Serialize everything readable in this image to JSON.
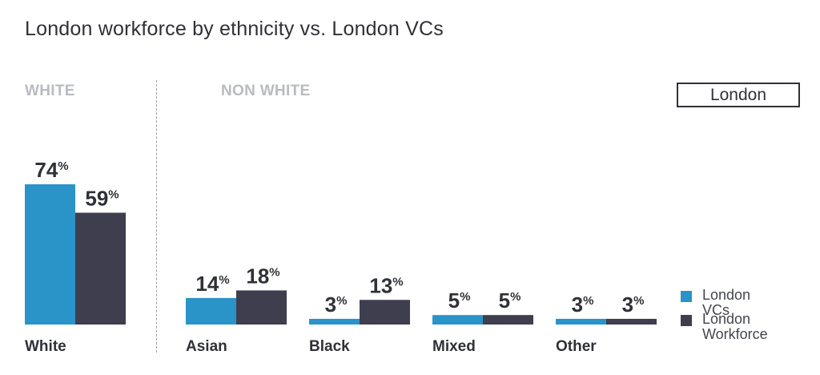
{
  "title": "London workforce by ethnicity vs. London VCs",
  "groups": {
    "white": "WHITE",
    "non_white": "NON WHITE"
  },
  "region_button": "London",
  "colors": {
    "london_vcs": "#2a93c8",
    "london_workforce": "#3f3e4e"
  },
  "chart_data": {
    "type": "bar",
    "categories": [
      "White",
      "Asian",
      "Black",
      "Mixed",
      "Other"
    ],
    "series": [
      {
        "name": "London VCs",
        "values": [
          74,
          14,
          3,
          5,
          3
        ]
      },
      {
        "name": "London Workforce",
        "values": [
          59,
          18,
          13,
          5,
          3
        ]
      }
    ],
    "value_suffix": "%",
    "ylim": [
      0,
      74
    ],
    "grid": false,
    "legend": "bottom-right"
  },
  "legend": {
    "vcs_label": "London VCs",
    "workforce_line1": "London",
    "workforce_line2": "Workforce"
  }
}
